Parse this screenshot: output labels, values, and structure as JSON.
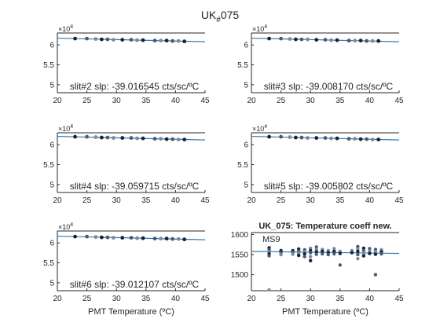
{
  "figure": {
    "suptitle_main": "UK",
    "suptitle_sub": "#",
    "suptitle_end": "075"
  },
  "colors": {
    "axis": "#262626",
    "fit_line": "#2b7bba",
    "dot_dark": "#1a2230",
    "dot_mid": "#4a5a70",
    "dot_light": "#7a8aa0"
  },
  "chart_data": [
    {
      "type": "scatter",
      "panel": "slit2",
      "annotation": "slit#2 slp: -39.016545 cts/sc/ºC",
      "exponent_base": "10",
      "exponent_power": "4",
      "xlim": [
        20,
        45
      ],
      "ylim": [
        4.8,
        6.3
      ],
      "xticks": [
        "20",
        "25",
        "30",
        "35",
        "40",
        "45"
      ],
      "yticks": [
        "5",
        "5.5",
        "6"
      ],
      "xlabel": "",
      "fit": [
        [
          20,
          6.17
        ],
        [
          45,
          6.08
        ]
      ],
      "points": [
        [
          23,
          6.16
        ],
        [
          25,
          6.16
        ],
        [
          26.5,
          6.15
        ],
        [
          27.5,
          6.14
        ],
        [
          28.5,
          6.14
        ],
        [
          29.5,
          6.13
        ],
        [
          31,
          6.13
        ],
        [
          32.5,
          6.13
        ],
        [
          33.5,
          6.12
        ],
        [
          34.5,
          6.12
        ],
        [
          36.5,
          6.11
        ],
        [
          37.5,
          6.11
        ],
        [
          38.5,
          6.11
        ],
        [
          39.5,
          6.1
        ],
        [
          40.5,
          6.1
        ],
        [
          41.5,
          6.09
        ]
      ]
    },
    {
      "type": "scatter",
      "panel": "slit3",
      "annotation": "slit#3 slp: -39.008170 cts/sc/ºC",
      "exponent_base": "10",
      "exponent_power": "4",
      "xlim": [
        20,
        45
      ],
      "ylim": [
        4.8,
        6.3
      ],
      "xticks": [
        "20",
        "25",
        "30",
        "35",
        "40",
        "45"
      ],
      "yticks": [
        "5",
        "5.5",
        "6"
      ],
      "xlabel": "",
      "fit": [
        [
          20,
          6.17
        ],
        [
          45,
          6.08
        ]
      ],
      "points": [
        [
          23,
          6.16
        ],
        [
          25,
          6.16
        ],
        [
          26.5,
          6.15
        ],
        [
          27.5,
          6.14
        ],
        [
          28.5,
          6.14
        ],
        [
          29.5,
          6.14
        ],
        [
          31,
          6.13
        ],
        [
          32.5,
          6.13
        ],
        [
          33.5,
          6.12
        ],
        [
          34.5,
          6.12
        ],
        [
          36.5,
          6.11
        ],
        [
          37.5,
          6.11
        ],
        [
          38.5,
          6.11
        ],
        [
          39.5,
          6.1
        ],
        [
          40.5,
          6.1
        ],
        [
          41.5,
          6.1
        ]
      ]
    },
    {
      "type": "scatter",
      "panel": "slit4",
      "annotation": "slit#4 slp: -39.059715 cts/sc/ºC",
      "exponent_base": "10",
      "exponent_power": "4",
      "xlim": [
        20,
        45
      ],
      "ylim": [
        4.8,
        6.3
      ],
      "xticks": [
        "20",
        "25",
        "30",
        "35",
        "40",
        "45"
      ],
      "yticks": [
        "5",
        "5.5",
        "6"
      ],
      "xlabel": "",
      "fit": [
        [
          20,
          6.21
        ],
        [
          45,
          6.12
        ]
      ],
      "points": [
        [
          23,
          6.2
        ],
        [
          25,
          6.2
        ],
        [
          26.5,
          6.19
        ],
        [
          27.5,
          6.18
        ],
        [
          28.5,
          6.18
        ],
        [
          29.5,
          6.17
        ],
        [
          31,
          6.17
        ],
        [
          32.5,
          6.17
        ],
        [
          33.5,
          6.16
        ],
        [
          34.5,
          6.16
        ],
        [
          36.5,
          6.15
        ],
        [
          37.5,
          6.15
        ],
        [
          38.5,
          6.14
        ],
        [
          39.5,
          6.14
        ],
        [
          40.5,
          6.13
        ],
        [
          41.5,
          6.13
        ]
      ]
    },
    {
      "type": "scatter",
      "panel": "slit5",
      "annotation": "slit#5 slp: -39.005802 cts/sc/ºC",
      "exponent_base": "10",
      "exponent_power": "4",
      "xlim": [
        20,
        45
      ],
      "ylim": [
        4.8,
        6.3
      ],
      "xticks": [
        "20",
        "25",
        "30",
        "35",
        "40",
        "45"
      ],
      "yticks": [
        "5",
        "5.5",
        "6"
      ],
      "xlabel": "",
      "fit": [
        [
          20,
          6.21
        ],
        [
          45,
          6.12
        ]
      ],
      "points": [
        [
          23,
          6.2
        ],
        [
          25,
          6.2
        ],
        [
          26.5,
          6.19
        ],
        [
          27.5,
          6.18
        ],
        [
          28.5,
          6.18
        ],
        [
          29.5,
          6.17
        ],
        [
          31,
          6.17
        ],
        [
          32.5,
          6.17
        ],
        [
          33.5,
          6.16
        ],
        [
          34.5,
          6.16
        ],
        [
          36.5,
          6.15
        ],
        [
          37.5,
          6.15
        ],
        [
          38.5,
          6.14
        ],
        [
          39.5,
          6.14
        ],
        [
          40.5,
          6.13
        ],
        [
          41.5,
          6.13
        ]
      ]
    },
    {
      "type": "scatter",
      "panel": "slit6",
      "annotation": "slit#6 slp: -39.012107 cts/sc/ºC",
      "exponent_base": "10",
      "exponent_power": "4",
      "xlim": [
        20,
        45
      ],
      "ylim": [
        4.8,
        6.3
      ],
      "xticks": [
        "20",
        "25",
        "30",
        "35",
        "40",
        "45"
      ],
      "yticks": [
        "5",
        "5.5",
        "6"
      ],
      "xlabel": "PMT Temperature (ºC)",
      "fit": [
        [
          20,
          6.17
        ],
        [
          45,
          6.08
        ]
      ],
      "points": [
        [
          23,
          6.16
        ],
        [
          25,
          6.16
        ],
        [
          26.5,
          6.15
        ],
        [
          27.5,
          6.14
        ],
        [
          28.5,
          6.14
        ],
        [
          29.5,
          6.13
        ],
        [
          31,
          6.13
        ],
        [
          32.5,
          6.13
        ],
        [
          33.5,
          6.12
        ],
        [
          34.5,
          6.12
        ],
        [
          36.5,
          6.11
        ],
        [
          37.5,
          6.11
        ],
        [
          38.5,
          6.11
        ],
        [
          39.5,
          6.1
        ],
        [
          40.5,
          6.1
        ],
        [
          41.5,
          6.09
        ]
      ]
    },
    {
      "type": "scatter",
      "panel": "ms9",
      "title": "UK_075: Temperature coeff new.",
      "legend": "MS9",
      "xlim": [
        20,
        45
      ],
      "ylim": [
        1460,
        1605
      ],
      "xticks": [
        "20",
        "25",
        "30",
        "35",
        "40",
        "45"
      ],
      "yticks": [
        "1500",
        "1550",
        "1600"
      ],
      "xlabel": "PMT Temperature (ºC)",
      "fit": [
        [
          20,
          1558
        ],
        [
          45,
          1553
        ]
      ],
      "points": [
        [
          23,
          1567
        ],
        [
          23,
          1562
        ],
        [
          23,
          1557
        ],
        [
          23,
          1552
        ],
        [
          23,
          1547
        ],
        [
          23,
          1462
        ],
        [
          25,
          1560
        ],
        [
          25,
          1555
        ],
        [
          25,
          1550
        ],
        [
          27,
          1560
        ],
        [
          27,
          1556
        ],
        [
          27,
          1551
        ],
        [
          28,
          1564
        ],
        [
          28,
          1559
        ],
        [
          28,
          1554
        ],
        [
          28,
          1548
        ],
        [
          29,
          1562
        ],
        [
          29,
          1557
        ],
        [
          29,
          1552
        ],
        [
          29,
          1545
        ],
        [
          30,
          1566
        ],
        [
          30,
          1560
        ],
        [
          30,
          1555
        ],
        [
          30,
          1545
        ],
        [
          30,
          1535
        ],
        [
          31,
          1569
        ],
        [
          31,
          1563
        ],
        [
          31,
          1557
        ],
        [
          31,
          1551
        ],
        [
          32,
          1563
        ],
        [
          32,
          1558
        ],
        [
          32,
          1552
        ],
        [
          33,
          1560
        ],
        [
          33,
          1555
        ],
        [
          33,
          1550
        ],
        [
          34,
          1565
        ],
        [
          34,
          1558
        ],
        [
          34,
          1552
        ],
        [
          35,
          1558
        ],
        [
          35,
          1553
        ],
        [
          35,
          1524
        ],
        [
          37,
          1560
        ],
        [
          37,
          1555
        ],
        [
          38,
          1570
        ],
        [
          38,
          1564
        ],
        [
          38,
          1558
        ],
        [
          38,
          1550
        ],
        [
          38,
          1540
        ],
        [
          39,
          1566
        ],
        [
          39,
          1560
        ],
        [
          39,
          1554
        ],
        [
          39,
          1547
        ],
        [
          40,
          1565
        ],
        [
          40,
          1559
        ],
        [
          40,
          1553
        ],
        [
          41,
          1563
        ],
        [
          41,
          1557
        ],
        [
          41,
          1551
        ],
        [
          41,
          1500
        ],
        [
          42,
          1562
        ],
        [
          42,
          1557
        ],
        [
          42,
          1552
        ]
      ]
    }
  ]
}
